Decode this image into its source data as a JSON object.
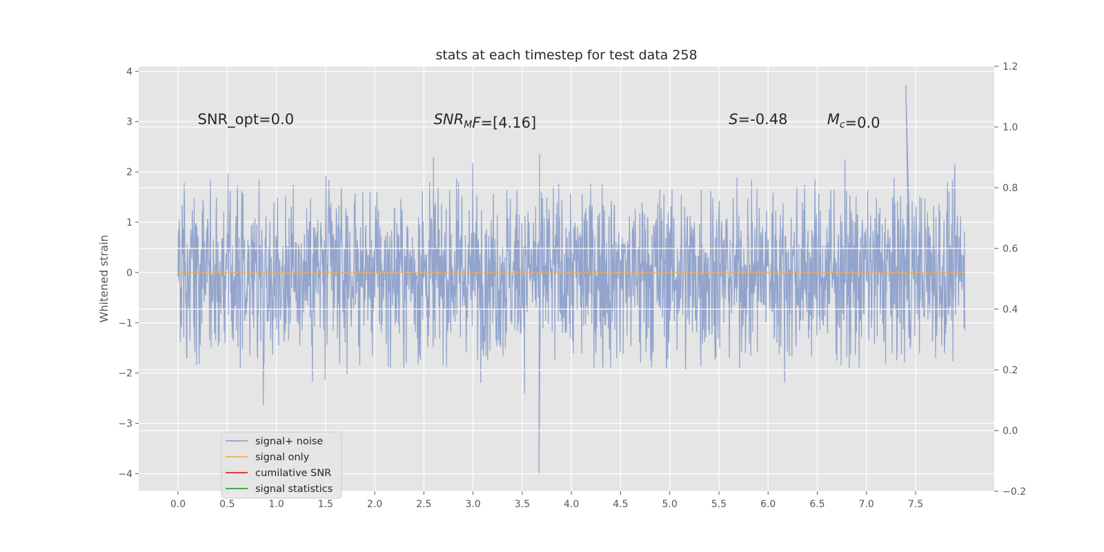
{
  "chart_data": {
    "type": "line",
    "title": "stats at each timestep for test data 258",
    "xlabel": "",
    "ylabel": "Whitened strain",
    "xlim": [
      -0.4,
      8.3
    ],
    "ylim": [
      -4.35,
      4.1
    ],
    "y2lim": [
      -0.2,
      1.2
    ],
    "xticks": [
      0.0,
      0.5,
      1.0,
      1.5,
      2.0,
      2.5,
      3.0,
      3.5,
      4.0,
      4.5,
      5.0,
      5.5,
      6.0,
      6.5,
      7.0,
      7.5
    ],
    "xtick_labels": [
      "0.0",
      "0.5",
      "1.0",
      "1.5",
      "2.0",
      "2.5",
      "3.0",
      "3.5",
      "4.0",
      "4.5",
      "5.0",
      "5.5",
      "6.0",
      "6.5",
      "7.0",
      "7.5"
    ],
    "yticks": [
      -4,
      -3,
      -2,
      -1,
      0,
      1,
      2,
      3,
      4
    ],
    "ytick_labels": [
      "−4",
      "−3",
      "−2",
      "−1",
      "0",
      "1",
      "2",
      "3",
      "4"
    ],
    "y2ticks": [
      -0.2,
      0.0,
      0.2,
      0.4,
      0.6,
      0.8,
      1.0,
      1.2
    ],
    "y2tick_labels": [
      "−0.2",
      "0.0",
      "0.2",
      "0.4",
      "0.6",
      "0.8",
      "1.0",
      "1.2"
    ],
    "grid": true,
    "legend_position": "lower-left",
    "series": [
      {
        "name": "signal+ noise",
        "color": "#8da0cb",
        "x_range": [
          0.0,
          8.0
        ],
        "sample_rate_hz": 256,
        "envelope": {
          "typical_max": 1.9,
          "typical_min": -1.9,
          "peak_max": 3.73,
          "peak_min": -3.99,
          "std": 0.85
        }
      },
      {
        "name": "signal only",
        "color": "#f0b050",
        "x": [
          0.0,
          8.0
        ],
        "y": [
          0.0,
          0.0
        ]
      },
      {
        "name": "cumilative SNR",
        "color": "#d62728",
        "x": [],
        "y": []
      },
      {
        "name": "signal statistics",
        "color": "#2ca02c",
        "x": [],
        "y": []
      }
    ],
    "annotations": [
      {
        "id": "snr-opt",
        "text": "SNR_opt=0.0",
        "x": 0.2,
        "y": 2.95
      },
      {
        "id": "snr-mf",
        "main": "SNR",
        "sub": "M",
        "after_sub": "F",
        "value": "=[4.16]",
        "x": 2.6,
        "y": 2.95
      },
      {
        "id": "s",
        "main": "S",
        "value": "=-0.48",
        "x": 5.6,
        "y": 2.95
      },
      {
        "id": "mc",
        "main": "M",
        "sub": "c",
        "value": "=0.0",
        "x": 6.6,
        "y": 2.95
      }
    ]
  }
}
